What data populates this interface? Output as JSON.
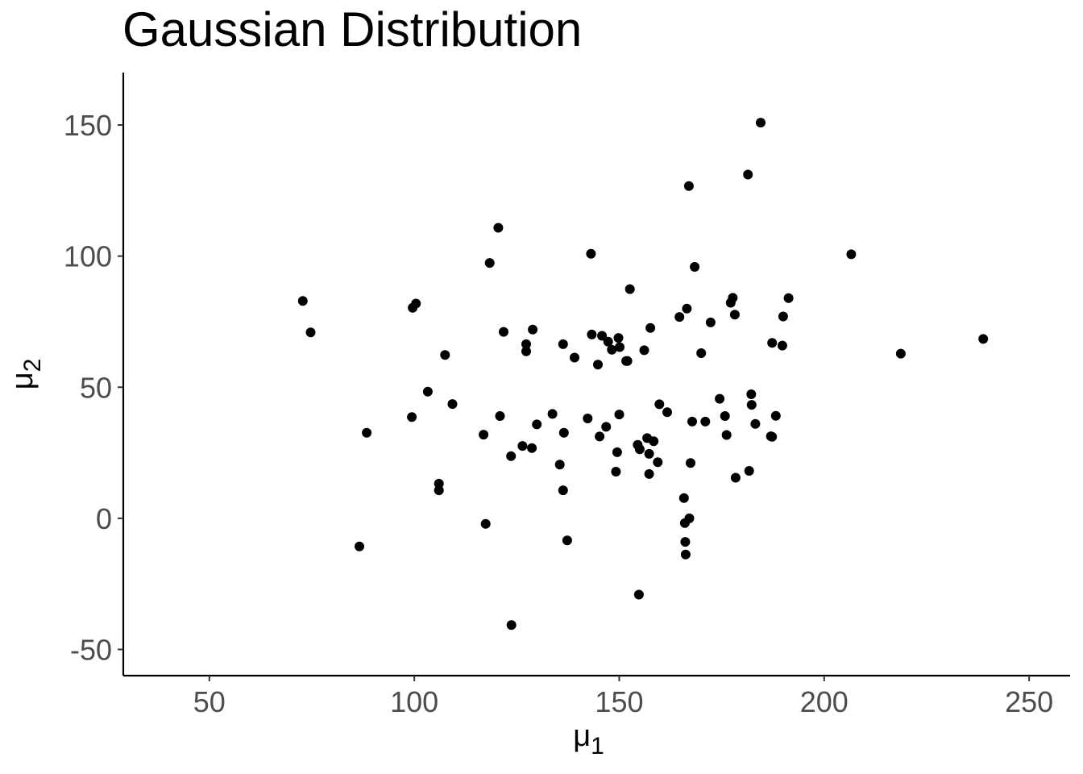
{
  "chart_data": {
    "type": "scatter",
    "title": "Gaussian Distribution",
    "xlabel": {
      "symbol": "μ",
      "subscript": "1"
    },
    "ylabel": {
      "symbol": "μ",
      "subscript": "2"
    },
    "xlim": [
      29,
      260
    ],
    "ylim": [
      -60,
      170
    ],
    "xticks": [
      50,
      100,
      150,
      200,
      250
    ],
    "yticks": [
      -50,
      0,
      50,
      100,
      150
    ],
    "xtick_labels": [
      "50",
      "100",
      "150",
      "200",
      "250"
    ],
    "ytick_labels": [
      "-50",
      "0",
      "50",
      "100",
      "150"
    ],
    "grid": false,
    "point_color": "#000000",
    "axis_color": "#000000",
    "tick_label_color": "#4d4d4d",
    "points": [
      {
        "x": 72.8,
        "y": 82.9
      },
      {
        "x": 74.7,
        "y": 70.9
      },
      {
        "x": 86.6,
        "y": -10.7
      },
      {
        "x": 88.4,
        "y": 32.6
      },
      {
        "x": 99.4,
        "y": 38.6
      },
      {
        "x": 99.6,
        "y": 80.3
      },
      {
        "x": 100.4,
        "y": 81.9
      },
      {
        "x": 103.3,
        "y": 48.3
      },
      {
        "x": 106.0,
        "y": 13.2
      },
      {
        "x": 106.0,
        "y": 10.7
      },
      {
        "x": 107.5,
        "y": 62.3
      },
      {
        "x": 109.3,
        "y": 43.6
      },
      {
        "x": 116.9,
        "y": 31.9
      },
      {
        "x": 117.4,
        "y": -2.1
      },
      {
        "x": 118.4,
        "y": 97.4
      },
      {
        "x": 120.5,
        "y": 110.8
      },
      {
        "x": 120.9,
        "y": 39.0
      },
      {
        "x": 121.8,
        "y": 71.1
      },
      {
        "x": 123.6,
        "y": 23.7
      },
      {
        "x": 123.7,
        "y": -40.7
      },
      {
        "x": 126.4,
        "y": 27.6
      },
      {
        "x": 127.3,
        "y": 66.4
      },
      {
        "x": 127.3,
        "y": 63.7
      },
      {
        "x": 128.7,
        "y": 26.8
      },
      {
        "x": 128.9,
        "y": 72.0
      },
      {
        "x": 129.9,
        "y": 35.8
      },
      {
        "x": 133.7,
        "y": 39.8
      },
      {
        "x": 135.5,
        "y": 20.5
      },
      {
        "x": 136.3,
        "y": 66.4
      },
      {
        "x": 136.3,
        "y": 10.7
      },
      {
        "x": 136.5,
        "y": 32.6
      },
      {
        "x": 137.3,
        "y": -8.4
      },
      {
        "x": 139.1,
        "y": 61.3
      },
      {
        "x": 142.3,
        "y": 38.1
      },
      {
        "x": 143.1,
        "y": 100.9
      },
      {
        "x": 143.3,
        "y": 70.1
      },
      {
        "x": 144.8,
        "y": 58.6
      },
      {
        "x": 145.2,
        "y": 31.2
      },
      {
        "x": 145.8,
        "y": 69.6
      },
      {
        "x": 146.8,
        "y": 34.9
      },
      {
        "x": 147.3,
        "y": 67.4
      },
      {
        "x": 148.2,
        "y": 64.3
      },
      {
        "x": 149.2,
        "y": 17.8
      },
      {
        "x": 149.5,
        "y": 25.2
      },
      {
        "x": 149.8,
        "y": 68.8
      },
      {
        "x": 150.0,
        "y": 39.6
      },
      {
        "x": 150.1,
        "y": 65.3
      },
      {
        "x": 151.7,
        "y": 60.0
      },
      {
        "x": 152.0,
        "y": 60.0
      },
      {
        "x": 152.6,
        "y": 87.4
      },
      {
        "x": 154.5,
        "y": 28.0
      },
      {
        "x": 154.8,
        "y": -29.1
      },
      {
        "x": 155.0,
        "y": 26.3
      },
      {
        "x": 156.1,
        "y": 64.1
      },
      {
        "x": 156.8,
        "y": 30.6
      },
      {
        "x": 157.3,
        "y": 24.6
      },
      {
        "x": 157.3,
        "y": 16.9
      },
      {
        "x": 157.6,
        "y": 72.6
      },
      {
        "x": 158.4,
        "y": 29.4
      },
      {
        "x": 159.4,
        "y": 21.4
      },
      {
        "x": 159.8,
        "y": 43.5
      },
      {
        "x": 161.7,
        "y": 40.5
      },
      {
        "x": 164.7,
        "y": 76.8
      },
      {
        "x": 165.8,
        "y": 7.7
      },
      {
        "x": 166.0,
        "y": -1.8
      },
      {
        "x": 166.1,
        "y": -9.0
      },
      {
        "x": 166.2,
        "y": -13.8
      },
      {
        "x": 166.5,
        "y": 80.0
      },
      {
        "x": 167.0,
        "y": 126.7
      },
      {
        "x": 167.1,
        "y": 0.0
      },
      {
        "x": 167.4,
        "y": 21.1
      },
      {
        "x": 167.8,
        "y": 36.9
      },
      {
        "x": 168.4,
        "y": 95.9
      },
      {
        "x": 170.0,
        "y": 63.0
      },
      {
        "x": 171.0,
        "y": 36.9
      },
      {
        "x": 172.3,
        "y": 74.7
      },
      {
        "x": 174.5,
        "y": 45.6
      },
      {
        "x": 175.8,
        "y": 39.0
      },
      {
        "x": 176.2,
        "y": 31.8
      },
      {
        "x": 177.2,
        "y": 82.2
      },
      {
        "x": 177.7,
        "y": 84.1
      },
      {
        "x": 178.2,
        "y": 77.7
      },
      {
        "x": 178.4,
        "y": 15.5
      },
      {
        "x": 181.4,
        "y": 131.1
      },
      {
        "x": 181.7,
        "y": 18.1
      },
      {
        "x": 182.2,
        "y": 47.3
      },
      {
        "x": 182.3,
        "y": 43.3
      },
      {
        "x": 183.2,
        "y": 36.0
      },
      {
        "x": 184.5,
        "y": 150.9
      },
      {
        "x": 187.0,
        "y": 31.3
      },
      {
        "x": 187.3,
        "y": 66.9
      },
      {
        "x": 187.3,
        "y": 31.1
      },
      {
        "x": 188.2,
        "y": 39.1
      },
      {
        "x": 189.8,
        "y": 65.9
      },
      {
        "x": 190.0,
        "y": 77.0
      },
      {
        "x": 191.3,
        "y": 84.0
      },
      {
        "x": 206.6,
        "y": 100.7
      },
      {
        "x": 218.7,
        "y": 62.8
      },
      {
        "x": 238.8,
        "y": 68.4
      }
    ]
  }
}
